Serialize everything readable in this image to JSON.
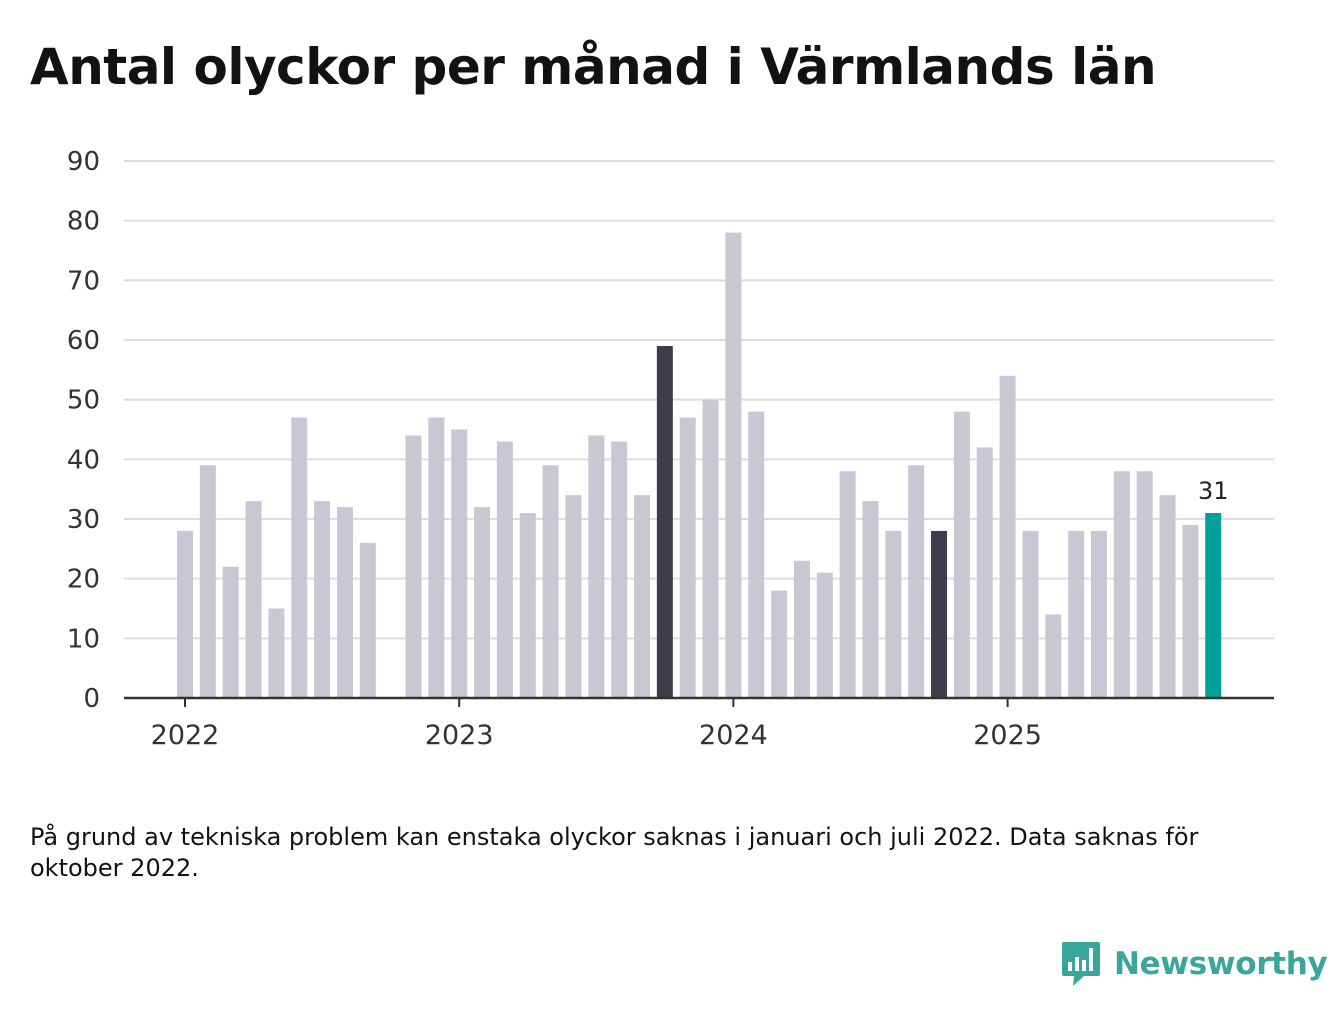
{
  "title": "Antal olyckor per månad i Värmlands län",
  "note": "På grund av tekniska problem kan enstaka olyckor saknas i januari och juli 2022. Data saknas för oktober 2022.",
  "brand": {
    "name": "Newsworthy",
    "icon": "newsworthy-logo-icon",
    "color": "#3aa59b"
  },
  "colors": {
    "default": "#c8c7d3",
    "highlight": "#3e3d4b",
    "latest": "#00a19a",
    "grid": "#dddddd",
    "axis": "#333333"
  },
  "chart_data": {
    "type": "bar",
    "title": "Antal olyckor per månad i Värmlands län",
    "xlabel": "",
    "ylabel": "",
    "ylim": [
      0,
      90
    ],
    "yticks": [
      0,
      10,
      20,
      30,
      40,
      50,
      60,
      70,
      80,
      90
    ],
    "xticks": [
      {
        "label": "2022",
        "index": 0
      },
      {
        "label": "2023",
        "index": 12
      },
      {
        "label": "2024",
        "index": 24
      },
      {
        "label": "2025",
        "index": 36
      }
    ],
    "categories": [
      "2022-01",
      "2022-02",
      "2022-03",
      "2022-04",
      "2022-05",
      "2022-06",
      "2022-07",
      "2022-08",
      "2022-09",
      "2022-10",
      "2022-11",
      "2022-12",
      "2023-01",
      "2023-02",
      "2023-03",
      "2023-04",
      "2023-05",
      "2023-06",
      "2023-07",
      "2023-08",
      "2023-09",
      "2023-10",
      "2023-11",
      "2023-12",
      "2024-01",
      "2024-02",
      "2024-03",
      "2024-04",
      "2024-05",
      "2024-06",
      "2024-07",
      "2024-08",
      "2024-09",
      "2024-10",
      "2024-11",
      "2024-12",
      "2025-01",
      "2025-02",
      "2025-03",
      "2025-04",
      "2025-05",
      "2025-06",
      "2025-07",
      "2025-08",
      "2025-09",
      "2025-10"
    ],
    "values": [
      28,
      39,
      22,
      33,
      15,
      47,
      33,
      32,
      26,
      null,
      44,
      47,
      45,
      32,
      43,
      31,
      39,
      34,
      44,
      43,
      34,
      59,
      47,
      50,
      78,
      48,
      18,
      23,
      21,
      38,
      33,
      28,
      39,
      28,
      48,
      42,
      54,
      28,
      14,
      28,
      28,
      38,
      38,
      34,
      29,
      31
    ],
    "highlight_indices": [
      21,
      33
    ],
    "latest_index": 45,
    "data_labels": [
      {
        "index": 45,
        "text": "31"
      }
    ]
  }
}
